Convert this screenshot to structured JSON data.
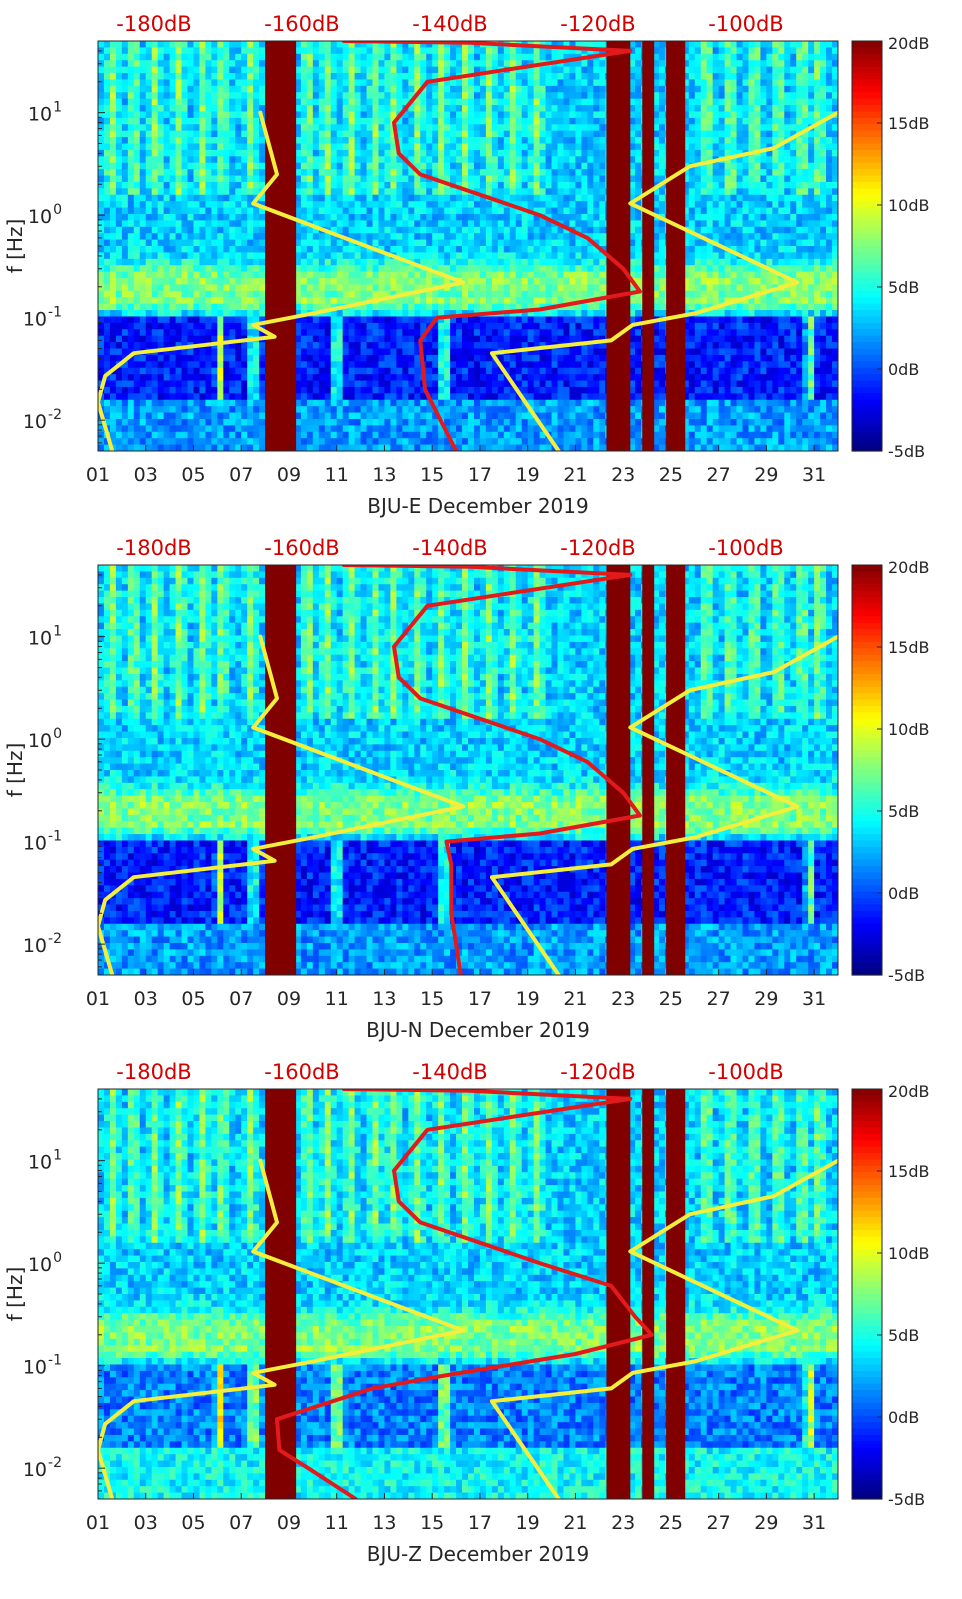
{
  "chart_data": [
    {
      "type": "heatmap",
      "title": "",
      "xlabel": "BJU-E December 2019",
      "ylabel": "f [Hz]",
      "x_tick_labels": [
        "01",
        "03",
        "05",
        "07",
        "09",
        "11",
        "13",
        "15",
        "17",
        "19",
        "21",
        "23",
        "25",
        "27",
        "29",
        "31"
      ],
      "x_range_days": [
        1,
        32
      ],
      "y_scale": "log",
      "y_range_hz": [
        0.005,
        50
      ],
      "y_tick_labels": [
        {
          "base": "10",
          "exp": "1",
          "value": 10
        },
        {
          "base": "10",
          "exp": "0",
          "value": 1
        },
        {
          "base": "10",
          "exp": "-1",
          "value": 0.1
        },
        {
          "base": "10",
          "exp": "-2",
          "value": 0.01
        }
      ],
      "top_axis_labels": [
        "-180dB",
        "-160dB",
        "-140dB",
        "-120dB",
        "-100dB"
      ],
      "top_axis_values_db": [
        -180,
        -160,
        -140,
        -120,
        -100
      ],
      "colorbar": {
        "range_db": [
          -5,
          20
        ],
        "tick_labels": [
          "20dB",
          "15dB",
          "10dB",
          "5dB",
          "0dB",
          "-5dB"
        ],
        "tick_values": [
          20,
          15,
          10,
          5,
          0,
          -5
        ]
      },
      "data_gaps_days": [
        [
          8.0,
          9.3
        ],
        [
          22.3,
          23.3
        ],
        [
          23.8,
          24.3
        ],
        [
          24.8,
          25.6
        ]
      ],
      "series": [
        {
          "name": "yellow-noise-model-left",
          "color": "#f4ee3c",
          "points": [
            [
              7.8,
              10
            ],
            [
              8.5,
              2.5
            ],
            [
              7.5,
              1.3
            ],
            [
              16.3,
              0.22
            ],
            [
              10,
              0.11
            ],
            [
              7.5,
              0.085
            ],
            [
              8.4,
              0.065
            ],
            [
              2.5,
              0.045
            ],
            [
              1.3,
              0.027
            ],
            [
              1.0,
              0.015
            ],
            [
              1.6,
              0.005
            ]
          ]
        },
        {
          "name": "yellow-noise-model-right",
          "color": "#f4ee3c",
          "points": [
            [
              32,
              10
            ],
            [
              29.3,
              4.5
            ],
            [
              25.8,
              3
            ],
            [
              23.3,
              1.3
            ],
            [
              30.3,
              0.22
            ],
            [
              26,
              0.11
            ],
            [
              23.4,
              0.085
            ],
            [
              22.5,
              0.06
            ],
            [
              17.5,
              0.045
            ],
            [
              20.3,
              0.005
            ]
          ]
        },
        {
          "name": "red-median-psd",
          "color": "#e31a1c",
          "points": [
            [
              11.3,
              50
            ],
            [
              16.6,
              48
            ],
            [
              23.3,
              40
            ],
            [
              14.8,
              20
            ],
            [
              13.4,
              8
            ],
            [
              13.6,
              4
            ],
            [
              14.5,
              2.5
            ],
            [
              19.5,
              1.0
            ],
            [
              21.5,
              0.6
            ],
            [
              23.0,
              0.3
            ],
            [
              23.7,
              0.18
            ],
            [
              19.5,
              0.12
            ],
            [
              15.2,
              0.1
            ],
            [
              14.5,
              0.06
            ],
            [
              14.7,
              0.02
            ],
            [
              16.0,
              0.005
            ]
          ]
        }
      ]
    },
    {
      "type": "heatmap",
      "title": "",
      "xlabel": "BJU-N December 2019",
      "ylabel": "f [Hz]",
      "x_tick_labels": [
        "01",
        "03",
        "05",
        "07",
        "09",
        "11",
        "13",
        "15",
        "17",
        "19",
        "21",
        "23",
        "25",
        "27",
        "29",
        "31"
      ],
      "x_range_days": [
        1,
        32
      ],
      "y_scale": "log",
      "y_range_hz": [
        0.005,
        50
      ],
      "y_tick_labels": [
        {
          "base": "10",
          "exp": "1",
          "value": 10
        },
        {
          "base": "10",
          "exp": "0",
          "value": 1
        },
        {
          "base": "10",
          "exp": "-1",
          "value": 0.1
        },
        {
          "base": "10",
          "exp": "-2",
          "value": 0.01
        }
      ],
      "top_axis_labels": [
        "-180dB",
        "-160dB",
        "-140dB",
        "-120dB",
        "-100dB"
      ],
      "top_axis_values_db": [
        -180,
        -160,
        -140,
        -120,
        -100
      ],
      "colorbar": {
        "range_db": [
          -5,
          20
        ],
        "tick_labels": [
          "20dB",
          "15dB",
          "10dB",
          "5dB",
          "0dB",
          "-5dB"
        ],
        "tick_values": [
          20,
          15,
          10,
          5,
          0,
          -5
        ]
      },
      "data_gaps_days": [
        [
          8.0,
          9.3
        ],
        [
          22.3,
          23.3
        ],
        [
          23.8,
          24.3
        ],
        [
          24.8,
          25.6
        ]
      ],
      "series": [
        {
          "name": "yellow-noise-model-left",
          "color": "#f4ee3c",
          "points": [
            [
              7.8,
              10
            ],
            [
              8.5,
              2.5
            ],
            [
              7.5,
              1.3
            ],
            [
              16.3,
              0.22
            ],
            [
              10,
              0.11
            ],
            [
              7.5,
              0.085
            ],
            [
              8.4,
              0.065
            ],
            [
              2.5,
              0.045
            ],
            [
              1.3,
              0.027
            ],
            [
              1.0,
              0.015
            ],
            [
              1.6,
              0.005
            ]
          ]
        },
        {
          "name": "yellow-noise-model-right",
          "color": "#f4ee3c",
          "points": [
            [
              32,
              10
            ],
            [
              29.3,
              4.5
            ],
            [
              25.8,
              3
            ],
            [
              23.3,
              1.3
            ],
            [
              30.3,
              0.22
            ],
            [
              26,
              0.11
            ],
            [
              23.4,
              0.085
            ],
            [
              22.5,
              0.06
            ],
            [
              17.5,
              0.045
            ],
            [
              20.3,
              0.005
            ]
          ]
        },
        {
          "name": "red-median-psd",
          "color": "#e31a1c",
          "points": [
            [
              11.3,
              50
            ],
            [
              16.6,
              48
            ],
            [
              23.3,
              40
            ],
            [
              14.8,
              20
            ],
            [
              13.4,
              8
            ],
            [
              13.6,
              4
            ],
            [
              14.5,
              2.5
            ],
            [
              19.5,
              1.0
            ],
            [
              21.5,
              0.6
            ],
            [
              23.0,
              0.3
            ],
            [
              23.7,
              0.18
            ],
            [
              19.5,
              0.12
            ],
            [
              15.6,
              0.1
            ],
            [
              15.8,
              0.06
            ],
            [
              15.8,
              0.02
            ],
            [
              16.2,
              0.005
            ]
          ]
        }
      ]
    },
    {
      "type": "heatmap",
      "title": "",
      "xlabel": "BJU-Z December 2019",
      "ylabel": "f [Hz]",
      "x_tick_labels": [
        "01",
        "03",
        "05",
        "07",
        "09",
        "11",
        "13",
        "15",
        "17",
        "19",
        "21",
        "23",
        "25",
        "27",
        "29",
        "31"
      ],
      "x_range_days": [
        1,
        32
      ],
      "y_scale": "log",
      "y_range_hz": [
        0.005,
        50
      ],
      "y_tick_labels": [
        {
          "base": "10",
          "exp": "1",
          "value": 10
        },
        {
          "base": "10",
          "exp": "0",
          "value": 1
        },
        {
          "base": "10",
          "exp": "-1",
          "value": 0.1
        },
        {
          "base": "10",
          "exp": "-2",
          "value": 0.01
        }
      ],
      "top_axis_labels": [
        "-180dB",
        "-160dB",
        "-140dB",
        "-120dB",
        "-100dB"
      ],
      "top_axis_values_db": [
        -180,
        -160,
        -140,
        -120,
        -100
      ],
      "colorbar": {
        "range_db": [
          -5,
          20
        ],
        "tick_labels": [
          "20dB",
          "15dB",
          "10dB",
          "5dB",
          "0dB",
          "-5dB"
        ],
        "tick_values": [
          20,
          15,
          10,
          5,
          0,
          -5
        ]
      },
      "data_gaps_days": [
        [
          8.0,
          9.3
        ],
        [
          22.3,
          23.3
        ],
        [
          23.8,
          24.3
        ],
        [
          24.8,
          25.6
        ]
      ],
      "series": [
        {
          "name": "yellow-noise-model-left",
          "color": "#f4ee3c",
          "points": [
            [
              7.8,
              10
            ],
            [
              8.5,
              2.5
            ],
            [
              7.5,
              1.3
            ],
            [
              16.3,
              0.22
            ],
            [
              10,
              0.11
            ],
            [
              7.5,
              0.085
            ],
            [
              8.4,
              0.065
            ],
            [
              2.5,
              0.045
            ],
            [
              1.3,
              0.027
            ],
            [
              1.0,
              0.015
            ],
            [
              1.6,
              0.005
            ]
          ]
        },
        {
          "name": "yellow-noise-model-right",
          "color": "#f4ee3c",
          "points": [
            [
              32,
              10
            ],
            [
              29.3,
              4.5
            ],
            [
              25.8,
              3
            ],
            [
              23.3,
              1.3
            ],
            [
              30.3,
              0.22
            ],
            [
              26,
              0.11
            ],
            [
              23.4,
              0.085
            ],
            [
              22.5,
              0.06
            ],
            [
              17.5,
              0.045
            ],
            [
              20.3,
              0.005
            ]
          ]
        },
        {
          "name": "red-median-psd",
          "color": "#e31a1c",
          "points": [
            [
              11.3,
              50
            ],
            [
              16.6,
              48
            ],
            [
              23.3,
              40
            ],
            [
              14.8,
              20
            ],
            [
              13.4,
              8
            ],
            [
              13.6,
              4
            ],
            [
              14.5,
              2.5
            ],
            [
              19.5,
              1.0
            ],
            [
              22.5,
              0.6
            ],
            [
              23.5,
              0.3
            ],
            [
              24.2,
              0.2
            ],
            [
              21.0,
              0.13
            ],
            [
              15.5,
              0.08
            ],
            [
              12.5,
              0.06
            ],
            [
              8.5,
              0.03
            ],
            [
              8.6,
              0.015
            ],
            [
              9.8,
              0.01
            ],
            [
              11.8,
              0.005
            ]
          ]
        }
      ]
    }
  ]
}
